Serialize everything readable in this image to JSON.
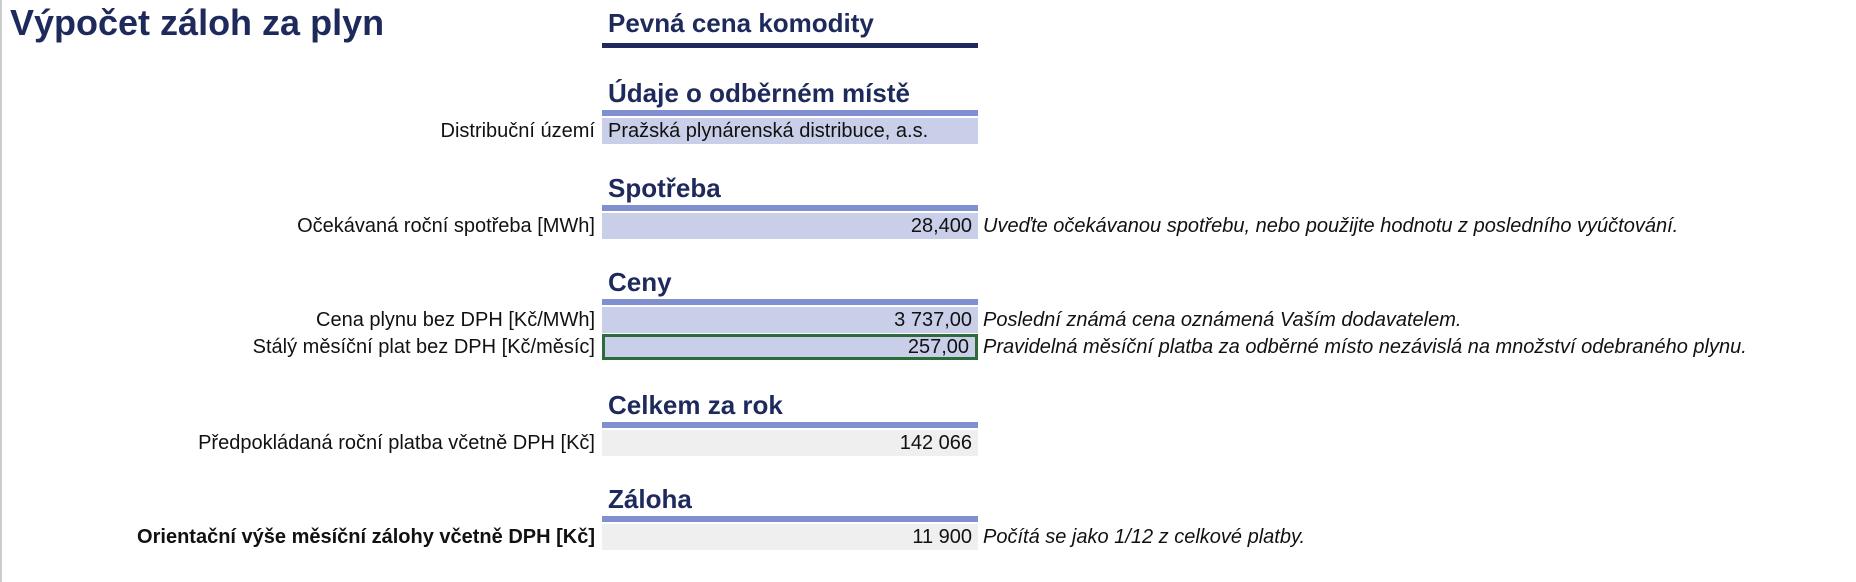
{
  "title": "Výpočet záloh za plyn",
  "main_heading": "Pevná cena komodity",
  "sections": [
    {
      "heading": "Údaje o odběrném místě",
      "rows": [
        {
          "label": "Distribuční území",
          "value": "Pražská plynárenská distribuce, a.s."
        }
      ]
    },
    {
      "heading": "Spotřeba",
      "rows": [
        {
          "label": "Očekávaná roční spotřeba [MWh]",
          "value": "28,400",
          "note": "Uveďte očekávanou spotřebu, nebo použijte hodnotu z posledního vyúčtování."
        }
      ]
    },
    {
      "heading": "Ceny",
      "rows": [
        {
          "label": "Cena plynu bez DPH [Kč/MWh]",
          "value": "3 737,00",
          "note": "Poslední známá cena oznámená Vaším dodavatelem."
        },
        {
          "label": "Stálý měsíční plat bez DPH [Kč/měsíc]",
          "value": "257,00",
          "note": "Pravidelná měsíční platba za odběrné místo nezávislá na množství odebraného plynu."
        }
      ]
    },
    {
      "heading": "Celkem za rok",
      "rows": [
        {
          "label": "Předpokládaná roční platba včetně DPH [Kč]",
          "value": "142 066"
        }
      ]
    },
    {
      "heading": "Záloha",
      "rows": [
        {
          "label": "Orientační výše měsíční zálohy včetně DPH [Kč]",
          "value": "11 900",
          "note": "Počítá se jako 1/12 z celkové platby."
        }
      ]
    }
  ]
}
